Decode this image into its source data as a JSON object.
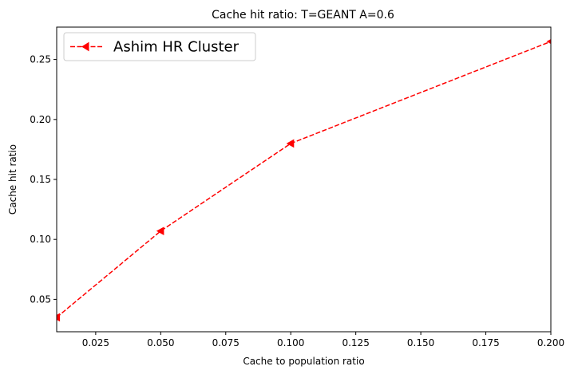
{
  "chart_data": {
    "type": "line",
    "title": "Cache hit ratio: T=GEANT A=0.6",
    "xlabel": "Cache to population ratio",
    "ylabel": "Cache hit ratio",
    "xlim": [
      0.01,
      0.2
    ],
    "ylim": [
      0.023,
      0.277
    ],
    "x_ticks": [
      0.025,
      0.05,
      0.075,
      0.1,
      0.125,
      0.15,
      0.175,
      0.2
    ],
    "x_tick_labels": [
      "0.025",
      "0.050",
      "0.075",
      "0.100",
      "0.125",
      "0.150",
      "0.175",
      "0.200"
    ],
    "y_ticks": [
      0.05,
      0.1,
      0.15,
      0.2,
      0.25
    ],
    "y_tick_labels": [
      "0.05",
      "0.10",
      "0.15",
      "0.20",
      "0.25"
    ],
    "grid": false,
    "legend_position": "top-left",
    "series": [
      {
        "name": "Ashim HR Cluster",
        "color": "#ff0000",
        "line_style": "dashed",
        "marker": "triangle-left",
        "x": [
          0.01,
          0.05,
          0.1,
          0.2
        ],
        "y": [
          0.035,
          0.107,
          0.18,
          0.265
        ]
      }
    ]
  }
}
